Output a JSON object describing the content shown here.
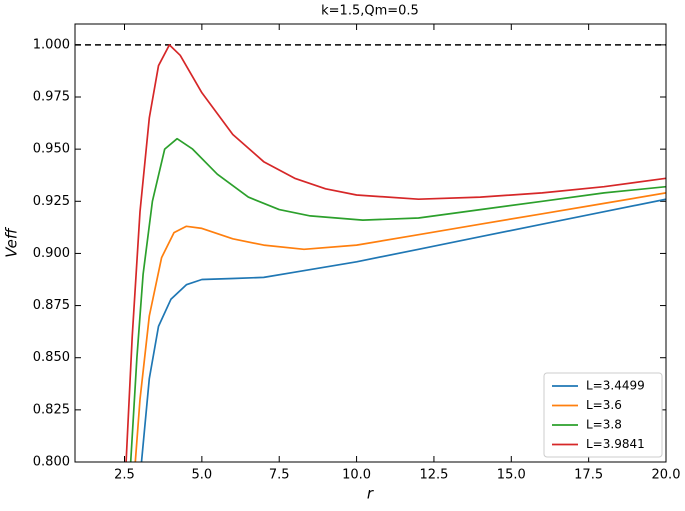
{
  "chart_data": {
    "type": "line",
    "title": "k=1.5,Qm=0.5",
    "xlabel": "r",
    "ylabel": "Veff",
    "xlim": [
      0.9,
      20
    ],
    "ylim": [
      0.8,
      1.01
    ],
    "xticks": [
      {
        "value": 2.5,
        "label": "2.5"
      },
      {
        "value": 5,
        "label": "5.0"
      },
      {
        "value": 7.5,
        "label": "7.5"
      },
      {
        "value": 10,
        "label": "10.0"
      },
      {
        "value": 12.5,
        "label": "12.5"
      },
      {
        "value": 15,
        "label": "15.0"
      },
      {
        "value": 17.5,
        "label": "17.5"
      },
      {
        "value": 20,
        "label": "20.0"
      }
    ],
    "yticks": [
      {
        "value": 0.8,
        "label": "0.800"
      },
      {
        "value": 0.825,
        "label": "0.825"
      },
      {
        "value": 0.85,
        "label": "0.850"
      },
      {
        "value": 0.875,
        "label": "0.875"
      },
      {
        "value": 0.9,
        "label": "0.900"
      },
      {
        "value": 0.925,
        "label": "0.925"
      },
      {
        "value": 0.95,
        "label": "0.950"
      },
      {
        "value": 0.975,
        "label": "0.975"
      },
      {
        "value": 1,
        "label": "1.000"
      }
    ],
    "hline": 1.0,
    "legend": "lower right",
    "series": [
      {
        "name": "L=3.4499",
        "color": "#1f77b4",
        "x": [
          3.05,
          3.3,
          3.6,
          4.0,
          4.5,
          5,
          6,
          7,
          8,
          10,
          12,
          14,
          16,
          18,
          20
        ],
        "values": [
          0.8,
          0.84,
          0.865,
          0.878,
          0.885,
          0.8875,
          0.888,
          0.8885,
          0.891,
          0.896,
          0.902,
          0.908,
          0.914,
          0.92,
          0.926
        ]
      },
      {
        "name": "L=3.6",
        "color": "#ff7f0e",
        "x": [
          2.85,
          3.0,
          3.3,
          3.7,
          4.1,
          4.5,
          5,
          6,
          7,
          8.3,
          10,
          12,
          14,
          16,
          18,
          20
        ],
        "values": [
          0.8,
          0.83,
          0.87,
          0.898,
          0.91,
          0.913,
          0.912,
          0.907,
          0.904,
          0.902,
          0.904,
          0.909,
          0.914,
          0.919,
          0.924,
          0.929
        ]
      },
      {
        "name": "L=3.8",
        "color": "#2ca02c",
        "x": [
          2.7,
          2.9,
          3.1,
          3.4,
          3.8,
          4.2,
          4.7,
          5.5,
          6.5,
          7.5,
          8.5,
          10.2,
          12,
          14,
          16,
          18,
          20
        ],
        "values": [
          0.8,
          0.85,
          0.89,
          0.925,
          0.95,
          0.955,
          0.95,
          0.938,
          0.927,
          0.921,
          0.918,
          0.916,
          0.917,
          0.921,
          0.925,
          0.929,
          0.932
        ]
      },
      {
        "name": "L=3.9841",
        "color": "#d62728",
        "x": [
          2.55,
          2.75,
          3.0,
          3.3,
          3.6,
          3.95,
          4.3,
          5,
          6,
          7,
          8,
          9,
          10,
          12,
          14,
          16,
          18,
          20
        ],
        "values": [
          0.8,
          0.86,
          0.92,
          0.965,
          0.99,
          1.0,
          0.995,
          0.977,
          0.957,
          0.944,
          0.936,
          0.931,
          0.928,
          0.926,
          0.927,
          0.929,
          0.932,
          0.936
        ]
      }
    ]
  }
}
